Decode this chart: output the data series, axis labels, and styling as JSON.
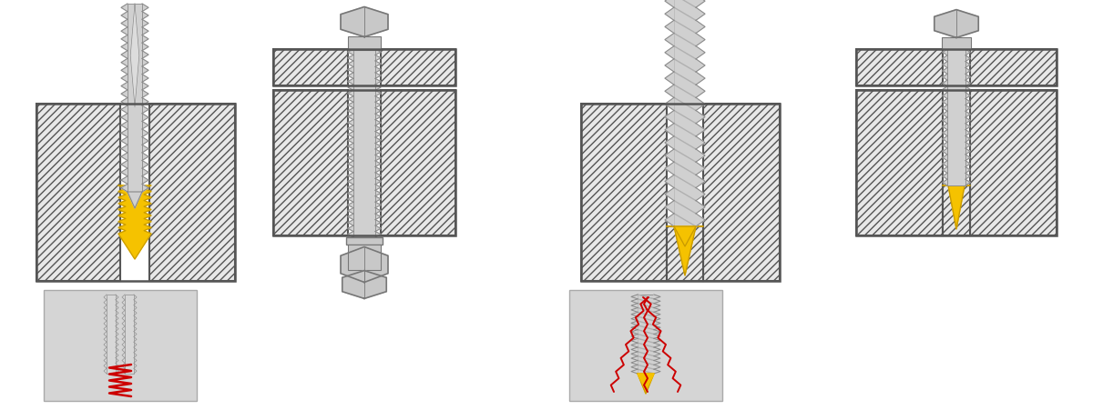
{
  "bg": "#ffffff",
  "mat_fc": "#e8e8e8",
  "mat_ec": "#555555",
  "mat_lw": 1.5,
  "hatch": "////",
  "screw_fc": "#d0d0d0",
  "screw_ec": "#888888",
  "bolt_fc": "#d0d0d0",
  "bolt_ec": "#888888",
  "hex_fc": "#c8c8c8",
  "hex_ec": "#777777",
  "yellow": "#f5c200",
  "yellow_ec": "#c89a00",
  "red": "#cc0000",
  "gray_ins": "#d5d5d5",
  "gray_ins_ec": "#aaaaaa",
  "drill_fc": "#d0d0d0",
  "drill_ec": "#888888",
  "drill_stripe": "#b0b0b0",
  "fig_w": 12.0,
  "fig_h": 4.52
}
